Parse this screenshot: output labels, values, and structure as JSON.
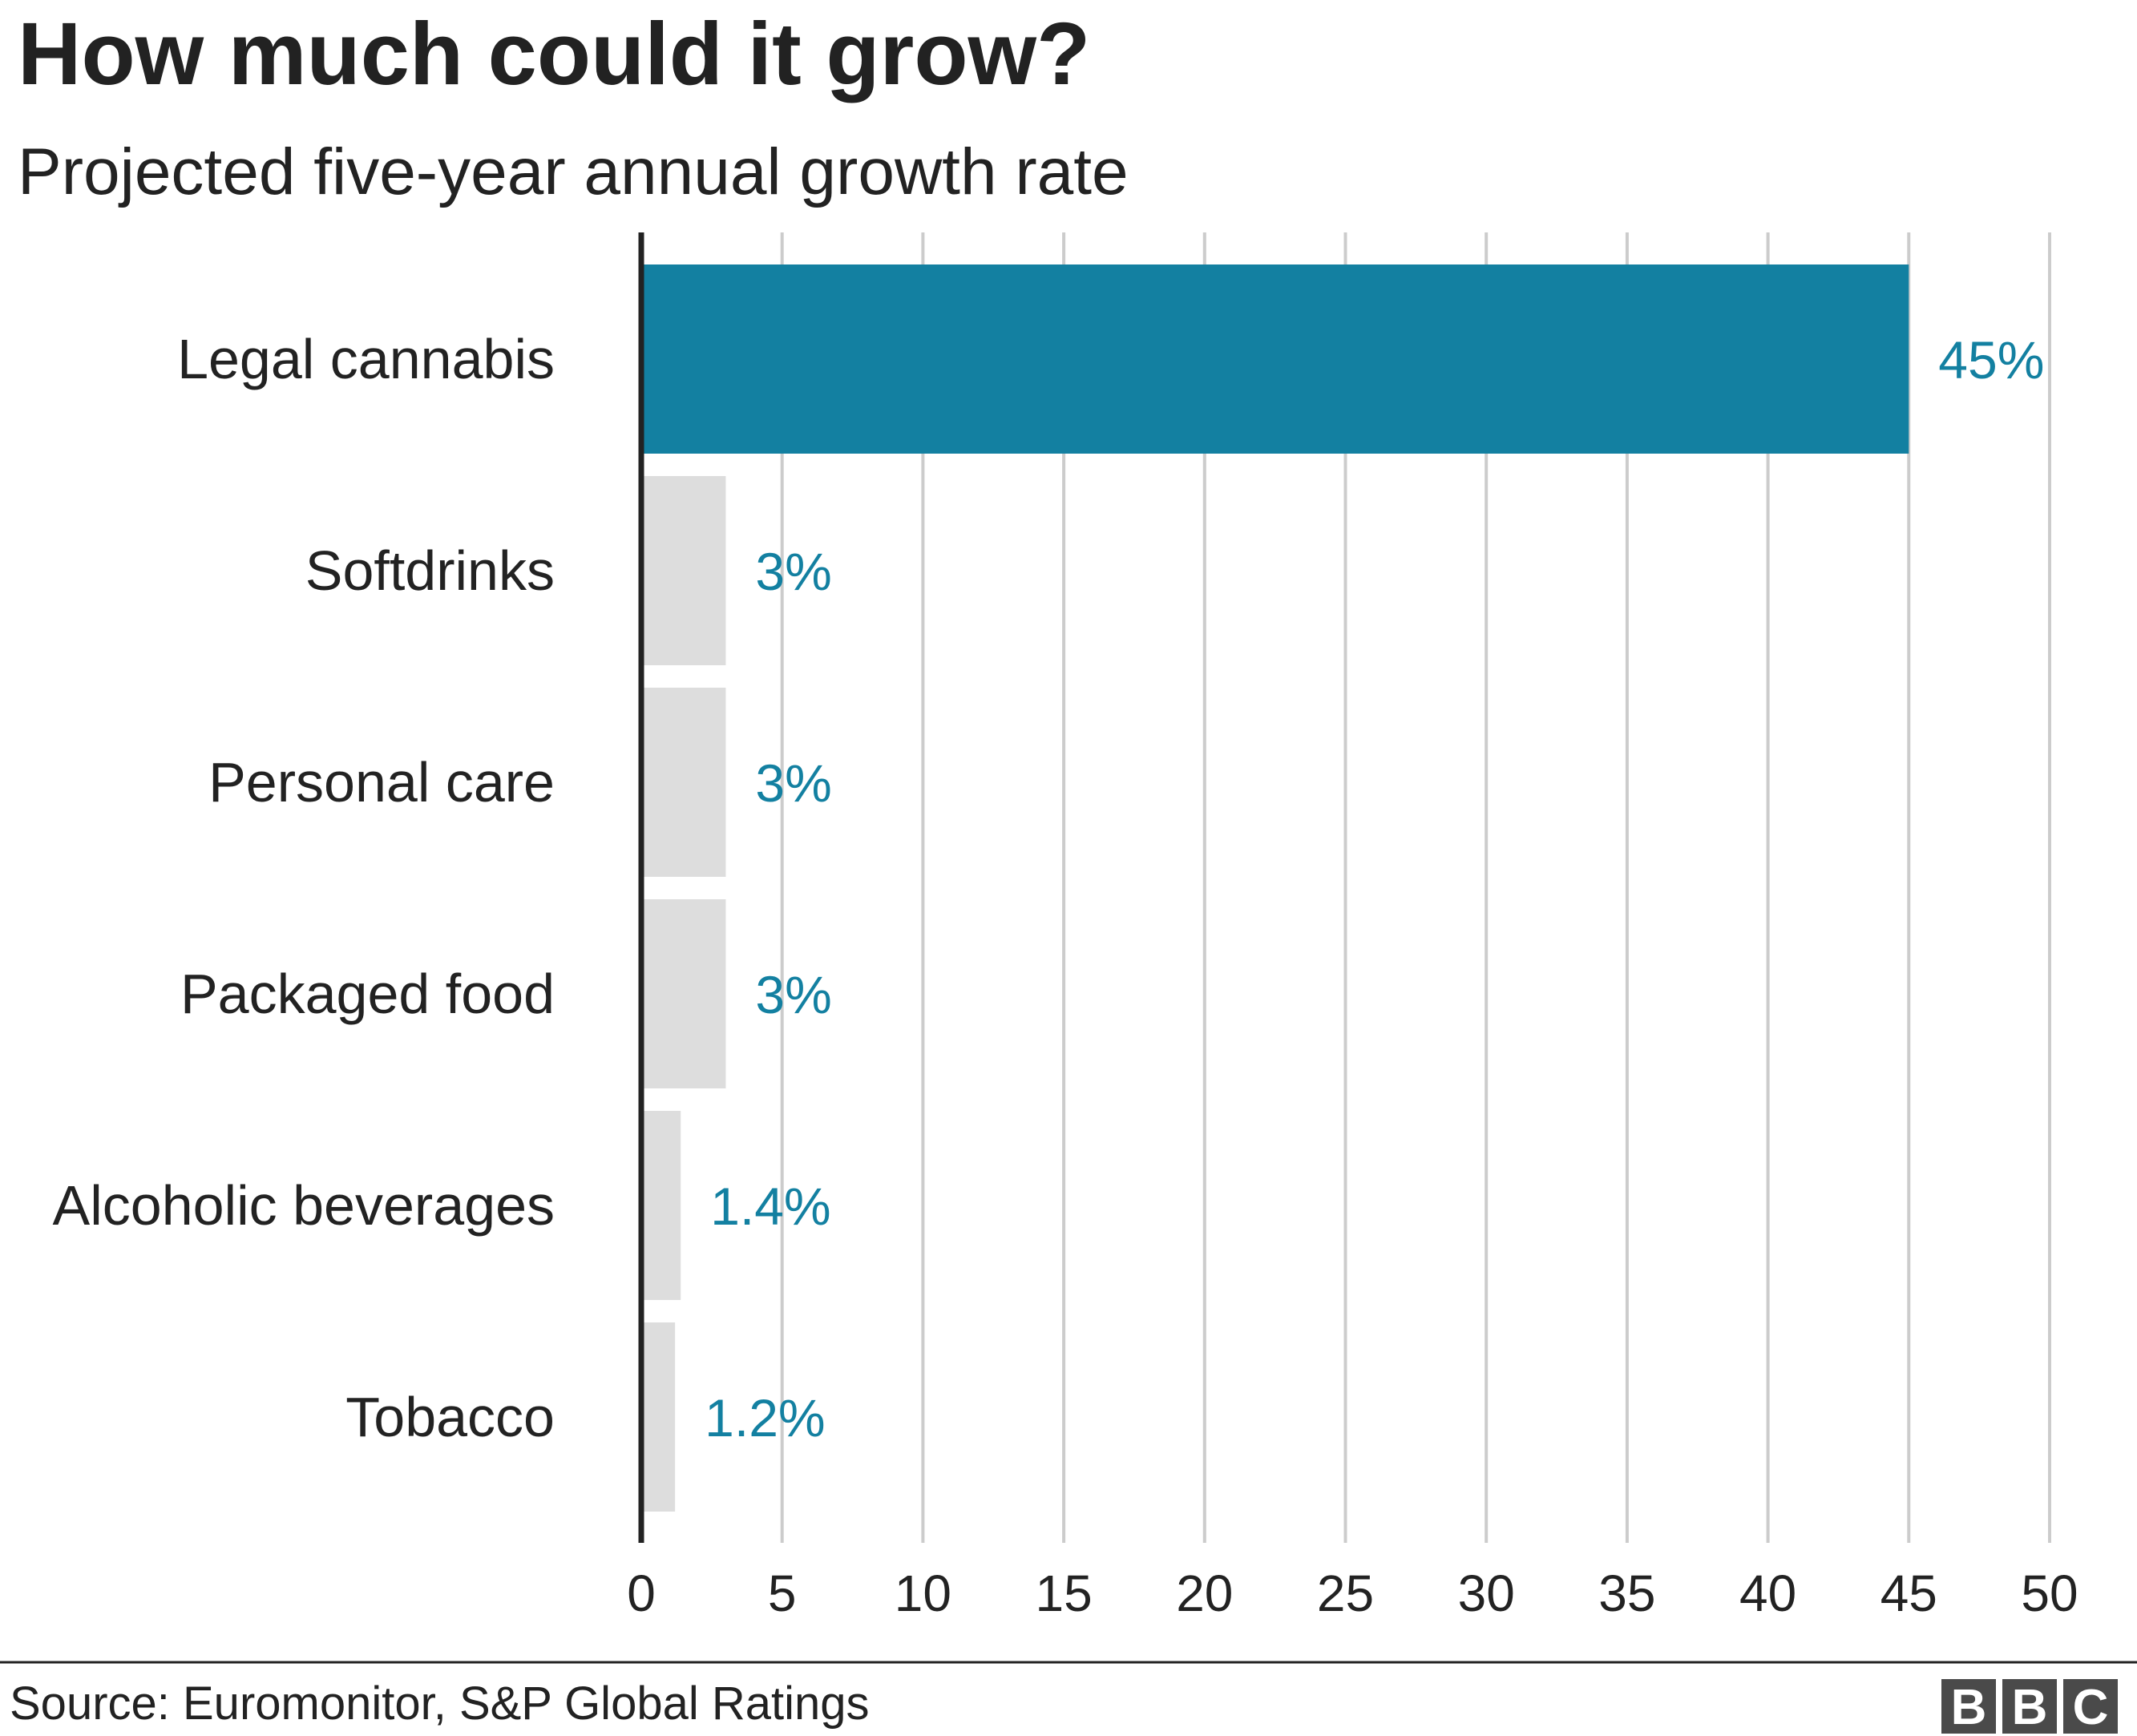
{
  "chart_data": {
    "type": "bar",
    "orientation": "horizontal",
    "title": "How much could it grow?",
    "subtitle": "Projected five-year annual growth rate",
    "categories": [
      "Legal cannabis",
      "Softdrinks",
      "Personal care",
      "Packaged food",
      "Alcoholic beverages",
      "Tobacco"
    ],
    "values": [
      45,
      3,
      3,
      3,
      1.4,
      1.2
    ],
    "value_labels": [
      "45%",
      "3%",
      "3%",
      "3%",
      "1.4%",
      "1.2%"
    ],
    "highlight_index": 0,
    "xlim": [
      0,
      50
    ],
    "xticks": [
      0,
      5,
      10,
      15,
      20,
      25,
      30,
      35,
      40,
      45,
      50
    ],
    "xtick_labels": [
      "0",
      "5",
      "10",
      "15",
      "20",
      "25",
      "30",
      "35",
      "40",
      "45",
      "50"
    ],
    "xlabel": "",
    "ylabel": "",
    "grid": true,
    "colors": {
      "highlight": "#1380a1",
      "default": "#dddddd",
      "value_label": "#1380a1"
    }
  },
  "footer": {
    "source": "Source: Euromonitor, S&P Global Ratings",
    "logo_letters": [
      "B",
      "B",
      "C"
    ]
  }
}
